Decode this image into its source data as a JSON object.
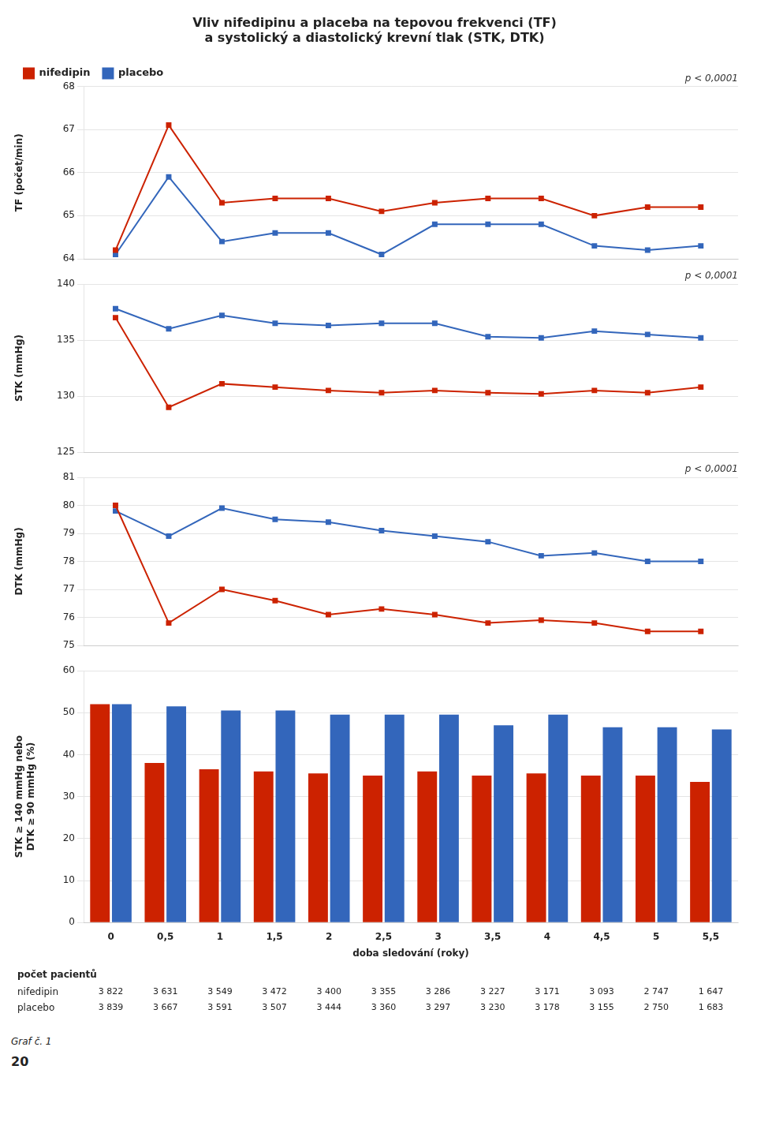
{
  "chart_data": [
    {
      "type": "line",
      "title": "Vliv nifedipinu a placeba na tepovou frekvenci (TF)\na systolický a diastolický krevní tlak (STK, DTK)",
      "x": [
        0,
        0.5,
        1,
        1.5,
        2,
        2.5,
        3,
        3.5,
        4,
        4.5,
        5,
        5.5
      ],
      "series": [
        {
          "name": "nifedipin",
          "color": "#cc2200",
          "marker": "square",
          "values": [
            64.2,
            67.1,
            65.3,
            65.4,
            65.4,
            65.1,
            65.3,
            65.4,
            65.4,
            65.0,
            65.2,
            65.2
          ]
        },
        {
          "name": "placebo",
          "color": "#3366bb",
          "marker": "square",
          "values": [
            64.1,
            65.9,
            64.4,
            64.6,
            64.6,
            64.1,
            64.8,
            64.8,
            64.8,
            64.3,
            64.2,
            64.3
          ]
        }
      ],
      "ylabel": "TF (počet/min)",
      "xlim": [
        -0.3,
        5.85
      ],
      "ylim": [
        64,
        68
      ],
      "yticks": [
        64,
        65,
        66,
        67,
        68
      ],
      "grid": true,
      "legend": "upper left",
      "tick_labels": "y",
      "annotations": [
        "p < 0,0001"
      ]
    },
    {
      "type": "line",
      "x": [
        0,
        0.5,
        1,
        1.5,
        2,
        2.5,
        3,
        3.5,
        4,
        4.5,
        5,
        5.5
      ],
      "series": [
        {
          "color": "#cc2200",
          "marker": "square",
          "values": [
            137.0,
            129.0,
            131.1,
            130.8,
            130.5,
            130.3,
            130.5,
            130.3,
            130.2,
            130.5,
            130.3,
            130.8
          ]
        },
        {
          "color": "#3366bb",
          "marker": "square",
          "values": [
            137.8,
            136.0,
            137.2,
            136.5,
            136.3,
            136.5,
            136.5,
            135.3,
            135.2,
            135.8,
            135.5,
            135.2
          ]
        }
      ],
      "ylabel": "STK (mmHg)",
      "xlim": [
        -0.3,
        5.85
      ],
      "ylim": [
        125,
        140
      ],
      "yticks": [
        125,
        130,
        135,
        140
      ],
      "grid": true,
      "tick_labels": "y",
      "annotations": [
        "p < 0,0001"
      ]
    },
    {
      "type": "line",
      "x": [
        0,
        0.5,
        1,
        1.5,
        2,
        2.5,
        3,
        3.5,
        4,
        4.5,
        5,
        5.5
      ],
      "series": [
        {
          "color": "#cc2200",
          "marker": "square",
          "values": [
            80.0,
            75.8,
            77.0,
            76.6,
            76.1,
            76.3,
            76.1,
            75.8,
            75.9,
            75.8,
            75.5,
            75.5
          ]
        },
        {
          "color": "#3366bb",
          "marker": "square",
          "values": [
            79.8,
            78.9,
            79.9,
            79.5,
            79.4,
            79.1,
            78.9,
            78.7,
            78.2,
            78.3,
            78.0,
            78.0
          ]
        }
      ],
      "ylabel": "DTK (mmHg)",
      "xlim": [
        -0.3,
        5.85
      ],
      "ylim": [
        75,
        81
      ],
      "yticks": [
        75,
        76,
        77,
        78,
        79,
        80,
        81
      ],
      "grid": true,
      "tick_labels": "y",
      "annotations": [
        "p < 0,0001"
      ]
    },
    {
      "type": "bar",
      "categories": [
        "0",
        "0,5",
        "1",
        "1,5",
        "2",
        "2,5",
        "3",
        "3,5",
        "4",
        "4,5",
        "5",
        "5,5"
      ],
      "series": [
        {
          "color": "#cc2200",
          "values": [
            52.0,
            38.0,
            36.5,
            36.0,
            35.5,
            35.0,
            36.0,
            35.0,
            35.5,
            35.0,
            35.0,
            33.5
          ]
        },
        {
          "color": "#3366bb",
          "values": [
            52.0,
            51.5,
            50.5,
            50.5,
            49.5,
            49.5,
            49.5,
            47.0,
            49.5,
            46.5,
            46.5,
            46.0
          ]
        }
      ],
      "xlabel": "doba sledování (roky)",
      "ylabel": "STK ≥ 140 mmHg nebo\nDTK ≥ 90 mmHg (%)",
      "ylim": [
        0,
        60
      ],
      "yticks": [
        0,
        10,
        20,
        30,
        40,
        50,
        60
      ],
      "grid": true,
      "table": {
        "title": "počet pacientů",
        "rows": [
          {
            "name": "nifedipin",
            "labels": [
              "3 822",
              "3 631",
              "3 549",
              "3 472",
              "3 400",
              "3 355",
              "3 286",
              "3 227",
              "3 171",
              "3 093",
              "2 747",
              "1 647"
            ]
          },
          {
            "name": "placebo",
            "labels": [
              "3 839",
              "3 667",
              "3 591",
              "3 507",
              "3 444",
              "3 360",
              "3 297",
              "3 230",
              "3 178",
              "3 155",
              "2 750",
              "1 683"
            ]
          }
        ]
      },
      "annotations": [
        "Graf č. 1",
        "20"
      ]
    }
  ]
}
